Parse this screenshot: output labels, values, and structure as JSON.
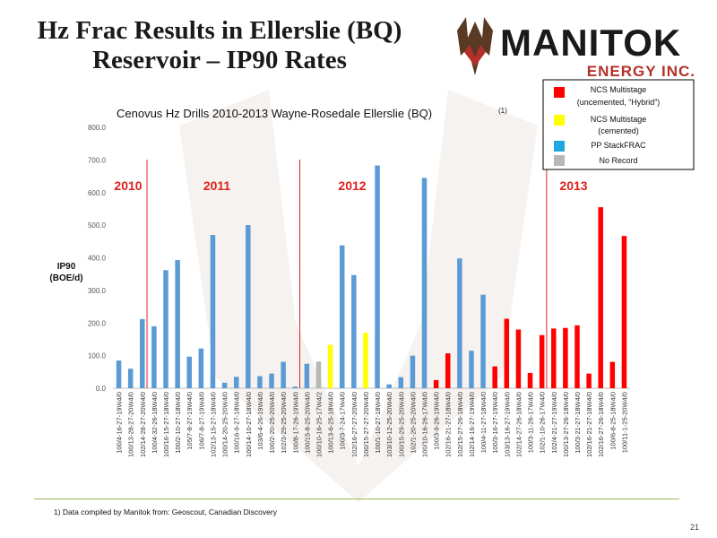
{
  "slide": {
    "title_line1": "Hz Frac Results in Ellerslie (BQ)",
    "title_line2": "Reservoir – IP90 Rates",
    "logo_word": "MANITOK",
    "logo_sub": "ENERGY INC.",
    "footnote": "1)  Data compiled by Manitok from: Geoscout, Canadian Discovery",
    "page_number": "21"
  },
  "chart_data": {
    "type": "bar",
    "title": "Cenovus Hz Drills 2010-2013 Wayne-Rosedale Ellerslie (BQ)",
    "title_sup": "(1)",
    "ylabel_line1": "IP90",
    "ylabel_line2": "(BOE/d)",
    "xlabel": "",
    "ylim": [
      0,
      800
    ],
    "yticks": [
      "0.0",
      "100.0",
      "200.0",
      "300.0",
      "400.0",
      "500.0",
      "600.0",
      "700.0",
      "800.0"
    ],
    "ytick_values": [
      0,
      100,
      200,
      300,
      400,
      500,
      600,
      700,
      800
    ],
    "grid": false,
    "legend_position": "top-right",
    "legend": [
      {
        "key": "ncs_uncemented",
        "line1": "NCS Multistage",
        "line2": "(uncemented, “Hybrid”)",
        "color": "#ff0000"
      },
      {
        "key": "ncs_cemented",
        "line1": "NCS Multistage",
        "line2": "(cemented)",
        "color": "#ffff00"
      },
      {
        "key": "pp",
        "line1": "PP StackFRAC",
        "line2": "",
        "color": "#1fa7e0"
      },
      {
        "key": "none",
        "line1": "No Record",
        "line2": "",
        "color": "#b7b7b7"
      }
    ],
    "series_colors": {
      "pp": "#5b9bd5",
      "ncs_uncemented": "#ff0000",
      "ncs_cemented": "#ffff00",
      "none": "#b7b7b7"
    },
    "year_labels": [
      {
        "label": "2010",
        "after_index": -1
      },
      {
        "label": "2011",
        "after_index": 2
      },
      {
        "label": "2012",
        "after_index": 15
      },
      {
        "label": "2013",
        "after_index": 36
      }
    ],
    "year_dividers_after_index": [
      2,
      15,
      36
    ],
    "year_label_color": "#e0201c",
    "divider_color": "#e0201c",
    "categories": [
      "100/4-16-27-19W4/0",
      "100/13-28-27-20W4/0",
      "102/14-28-27-20W4/0",
      "100/4-32-26-18W4/0",
      "100/16-15-27-18W4/0",
      "100/2-10-27-18W4/0",
      "105/7-8-27-19W4/0",
      "106/7-8-27-19W4/0",
      "102/13-15-27-18W4/0",
      "100/14-20-25-20W4/0",
      "100/16-9-27-18W4/0",
      "100/14-10-27-18W4/0",
      "103/6-4-26-19W4/0",
      "100/2-20-25-20W4/0",
      "102/3-29-25-20W4/0",
      "100/8-17-26-19W4/0",
      "100/15-8-25-20W4/0",
      "100/10-16-25-17W4/2",
      "100/13-6-25-18W4/0",
      "100/3-7-24-17W4/0",
      "102/16-27-27-20W4/0",
      "100/15-27-27-20W4/0",
      "100/1-10-27-18W4/0",
      "103/10-12-25-20W4/0",
      "100/15-29-25-20W4/0",
      "102/1-20-25-20W4/0",
      "100/10-16-26-17W4/0",
      "100/3-9-26-19W4/0",
      "102/16-21-27-18W4/0",
      "102/15-27-26-18W4/0",
      "102/14-16-27-19W4/0",
      "100/4-11-27-18W4/0",
      "100/3-16-27-19W4/0",
      "103/13-16-27-19W4/0",
      "102/14-27-26-18W4/0",
      "100/3-11-26-17W4/0",
      "102/1-10-26-17W4/0",
      "102/4-21-27-19W4/0",
      "100/13-27-26-18W4/0",
      "100/3-21-27-18W4/0",
      "102/16-21-27-18W4/0",
      "102/16-27-26-18W4/0",
      "100/6-8-25-18W4/0",
      "100/11-1-25-20W4/0"
    ],
    "values": [
      85,
      60,
      212,
      190,
      362,
      393,
      97,
      122,
      470,
      17,
      35,
      500,
      37,
      45,
      81,
      5,
      75,
      82,
      133,
      438,
      347,
      170,
      683,
      12,
      34,
      100,
      645,
      25,
      107,
      398,
      115,
      287,
      67,
      213,
      180,
      47,
      163,
      183,
      185,
      193,
      45,
      555,
      81,
      467
    ],
    "types": [
      "pp",
      "pp",
      "pp",
      "pp",
      "pp",
      "pp",
      "pp",
      "pp",
      "pp",
      "pp",
      "pp",
      "pp",
      "pp",
      "pp",
      "pp",
      "pp",
      "pp",
      "none",
      "ncs_cemented",
      "pp",
      "pp",
      "ncs_cemented",
      "pp",
      "pp",
      "pp",
      "pp",
      "pp",
      "ncs_uncemented",
      "ncs_uncemented",
      "pp",
      "pp",
      "pp",
      "ncs_uncemented",
      "ncs_uncemented",
      "ncs_uncemented",
      "ncs_uncemented",
      "ncs_uncemented",
      "ncs_uncemented",
      "ncs_uncemented",
      "ncs_uncemented",
      "ncs_uncemented",
      "ncs_uncemented",
      "ncs_uncemented",
      "ncs_uncemented"
    ]
  }
}
